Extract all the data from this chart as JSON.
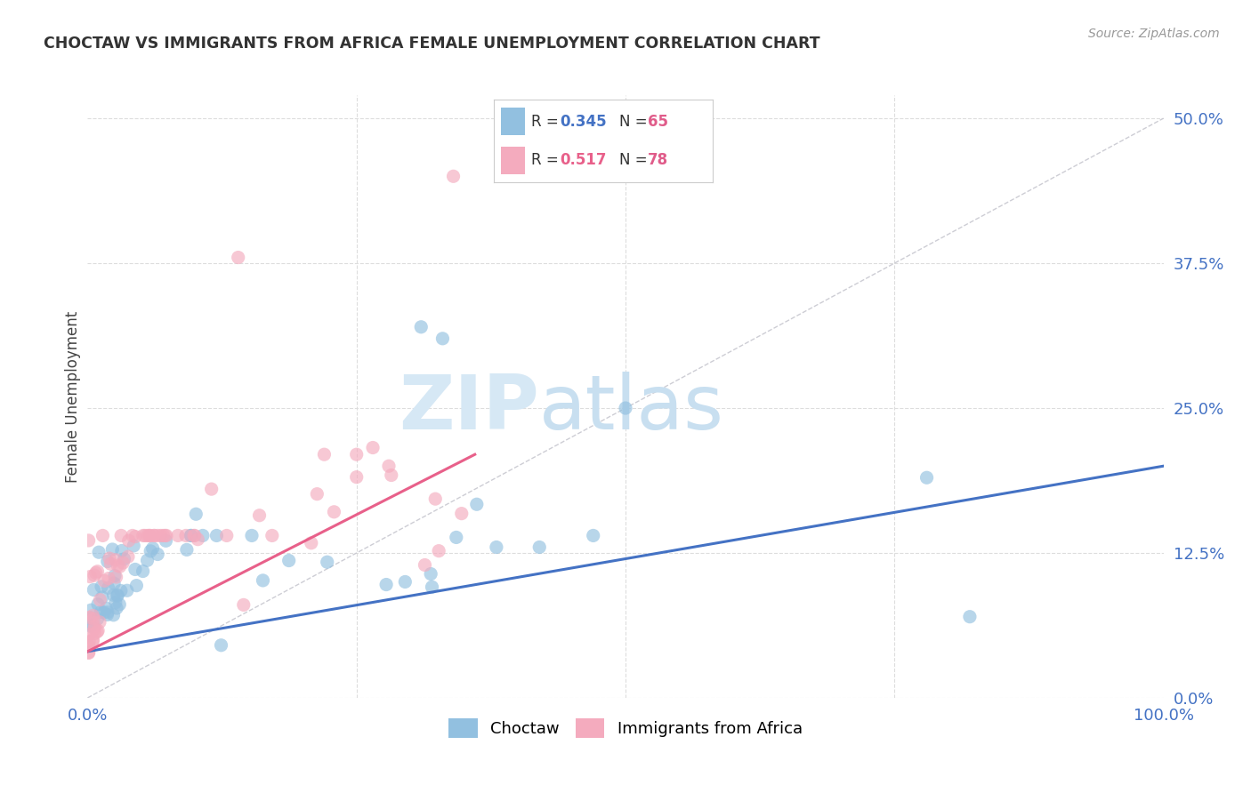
{
  "title": "CHOCTAW VS IMMIGRANTS FROM AFRICA FEMALE UNEMPLOYMENT CORRELATION CHART",
  "source": "Source: ZipAtlas.com",
  "ylabel": "Female Unemployment",
  "ytick_vals": [
    0.0,
    0.125,
    0.25,
    0.375,
    0.5
  ],
  "ytick_labels": [
    "0.0%",
    "12.5%",
    "25.0%",
    "37.5%",
    "50.0%"
  ],
  "xtick_labels": [
    "0.0%",
    "100.0%"
  ],
  "legend_labels": [
    "Choctaw",
    "Immigrants from Africa"
  ],
  "choctaw_R": "0.345",
  "choctaw_N": "65",
  "africa_R": "0.517",
  "africa_N": "78",
  "choctaw_color": "#92C0E0",
  "africa_color": "#F4ABBE",
  "choctaw_line_color": "#4472C4",
  "africa_line_color": "#E8608A",
  "diagonal_color": "#C8C8D0",
  "background_color": "#FFFFFF",
  "grid_color": "#DDDDDD",
  "watermark_color1": "#D8E4F0",
  "watermark_color2": "#C0D0E8"
}
